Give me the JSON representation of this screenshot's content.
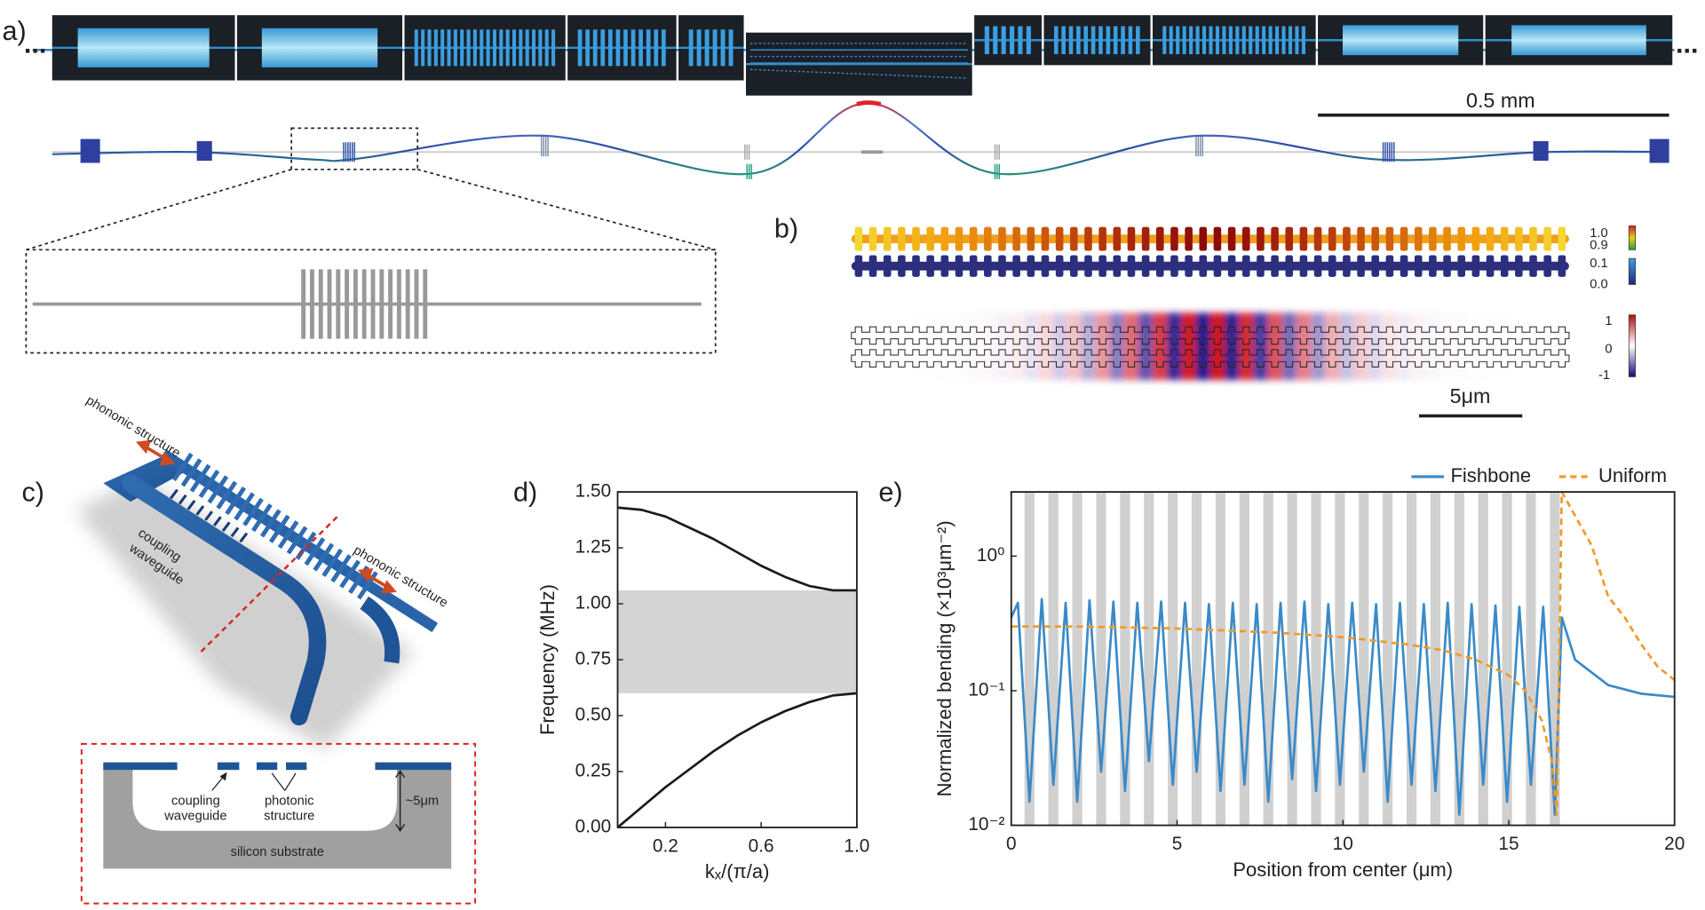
{
  "panels": {
    "a": {
      "label": "a)",
      "ellipsis_left": "...",
      "ellipsis_right": "...",
      "scale_bar": "0.5 mm"
    },
    "b": {
      "label": "b)",
      "colorbar_1_top": "1.0",
      "colorbar_1_bottom": "0.9",
      "colorbar_2_top": "0.1",
      "colorbar_2_bottom": "0.0",
      "colorbar_3_top": "1",
      "colorbar_3_middle": "0",
      "colorbar_3_bottom": "-1",
      "scale_bar": "5μm"
    },
    "c": {
      "label": "c)",
      "phononic_1": "phononic structure",
      "phononic_2": "phononic structure",
      "coupling_3d_1": "coupling",
      "coupling_3d_2": "waveguide",
      "coupling_cs_1": "coupling",
      "coupling_cs_2": "waveguide",
      "photonic_1": "photonic",
      "photonic_2": "structure",
      "depth": "~5μm",
      "substrate": "silicon substrate"
    }
  },
  "chart_data": [
    {
      "type": "line",
      "panel_label": "d)",
      "x_label": "kₓ/(π/a)",
      "y_label": "Frequency (MHz)",
      "xlim": [
        0,
        1
      ],
      "xticks": [
        0.2,
        0.6,
        {
          "value": 1,
          "label": "1.0"
        }
      ],
      "ylim": [
        0,
        1.5
      ],
      "yticks": [
        {
          "value": 0,
          "label": "0.00"
        },
        0.25,
        {
          "value": 0.5,
          "label": "0.50"
        },
        0.75,
        {
          "value": 1,
          "label": "1.00"
        },
        1.25,
        {
          "value": 1.5,
          "label": "1.50"
        }
      ],
      "bandgap": [
        0.6,
        1.06
      ],
      "bandgap_color": "#d4d4d4",
      "series": [
        {
          "color": "#1a1a1a",
          "x": [
            0,
            0.1,
            0.2,
            0.3,
            0.4,
            0.5,
            0.6,
            0.7,
            0.8,
            0.9,
            1
          ],
          "values": [
            1.43,
            1.42,
            1.39,
            1.34,
            1.29,
            1.23,
            1.17,
            1.12,
            1.08,
            1.06,
            1.06
          ]
        },
        {
          "color": "#1a1a1a",
          "x": [
            0,
            0.1,
            0.2,
            0.3,
            0.4,
            0.5,
            0.6,
            0.7,
            0.8,
            0.9,
            1
          ],
          "values": [
            0,
            0.09,
            0.18,
            0.26,
            0.34,
            0.41,
            0.47,
            0.52,
            0.56,
            0.59,
            0.6
          ]
        }
      ]
    },
    {
      "type": "line",
      "panel_label": "e)",
      "x_label": "Position from center (μm)",
      "y_label": "Normalized bending (×10³μm⁻²)",
      "xlim": [
        0,
        20
      ],
      "xticks": [
        0,
        5,
        10,
        15,
        20
      ],
      "ylim": [
        0.01,
        3
      ],
      "y_scale": "log",
      "yticks": [
        {
          "value": 0.01,
          "label": "10⁻²"
        },
        {
          "value": 0.1,
          "label": "10⁻¹"
        },
        {
          "value": 1,
          "label": "10⁰"
        }
      ],
      "legend": "top-right",
      "stripes": [
        0.4,
        1.12,
        1.84,
        2.56,
        3.28,
        4,
        4.72,
        5.44,
        6.16,
        6.88,
        7.6,
        8.32,
        9.04,
        9.76,
        10.48,
        11.2,
        11.92,
        12.64,
        13.36,
        14.08,
        14.8,
        15.52,
        16.24
      ],
      "stripe_width": 0.3,
      "stripe_color": "#d0d0d0",
      "series": [
        {
          "name": "Fishbone",
          "color": "#3a8ac8",
          "dash": "solid",
          "x": [
            0,
            0.2,
            0.55,
            0.92,
            1.27,
            1.64,
            1.99,
            2.36,
            2.71,
            3.08,
            3.43,
            3.8,
            4.15,
            4.52,
            4.87,
            5.24,
            5.59,
            5.96,
            6.31,
            6.68,
            7.03,
            7.4,
            7.75,
            8.12,
            8.47,
            8.84,
            9.19,
            9.56,
            9.91,
            10.28,
            10.63,
            11,
            11.35,
            11.72,
            12.07,
            12.44,
            12.79,
            13.16,
            13.51,
            13.88,
            14.23,
            14.6,
            14.95,
            15.32,
            15.67,
            16.04,
            16.39,
            16.6,
            17,
            18,
            19,
            20
          ],
          "values": [
            0.35,
            0.45,
            0.015,
            0.48,
            0.02,
            0.45,
            0.015,
            0.47,
            0.025,
            0.46,
            0.018,
            0.45,
            0.03,
            0.46,
            0.02,
            0.45,
            0.025,
            0.44,
            0.018,
            0.45,
            0.02,
            0.44,
            0.015,
            0.45,
            0.022,
            0.46,
            0.018,
            0.44,
            0.02,
            0.45,
            0.025,
            0.44,
            0.015,
            0.45,
            0.02,
            0.44,
            0.018,
            0.45,
            0.012,
            0.44,
            0.02,
            0.43,
            0.015,
            0.42,
            0.02,
            0.42,
            0.012,
            0.35,
            0.17,
            0.11,
            0.095,
            0.09
          ]
        },
        {
          "name": "Uniform",
          "color": "#f09a28",
          "dash": "dashed",
          "x": [
            0,
            2,
            5,
            8,
            10,
            12,
            13,
            14,
            15,
            15.5,
            16,
            16.3,
            16.45,
            16.6,
            17,
            17.5,
            18,
            18.5,
            19,
            19.5,
            20
          ],
          "values": [
            0.3,
            0.3,
            0.29,
            0.27,
            0.25,
            0.22,
            0.2,
            0.17,
            0.13,
            0.1,
            0.06,
            0.03,
            0.012,
            3,
            2,
            1.2,
            0.5,
            0.35,
            0.22,
            0.15,
            0.12
          ]
        }
      ]
    }
  ]
}
